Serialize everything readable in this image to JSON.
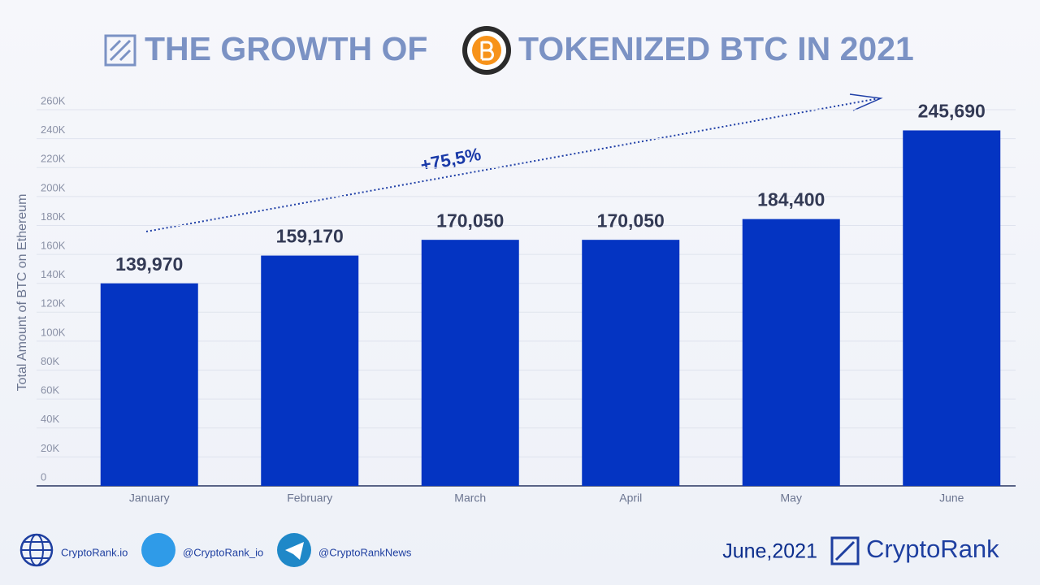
{
  "chart_data": {
    "type": "bar",
    "title": [
      "THE GROWTH OF",
      "TOKENIZED BTC IN 2021"
    ],
    "y_label": "Total Amount of BTC on Ethereum",
    "annotation": "+75,5%",
    "categories": [
      "January",
      "February",
      "March",
      "April",
      "May",
      "June"
    ],
    "values": [
      139970,
      159170,
      170050,
      170050,
      184400,
      245690
    ],
    "value_labels": [
      "139,970",
      "159,170",
      "170,050",
      "170,050",
      "184,400",
      "245,690"
    ],
    "color": "#0434c2",
    "ylim": [
      0,
      260000
    ],
    "yticks": [
      0,
      {
        "value": 20000,
        "label": "20K"
      },
      {
        "value": 40000,
        "label": "40K"
      },
      {
        "value": 60000,
        "label": "60K"
      },
      {
        "value": 80000,
        "label": "80K"
      },
      {
        "value": 100000,
        "label": "100K"
      },
      {
        "value": 120000,
        "label": "120K"
      },
      {
        "value": 140000,
        "label": "140K"
      },
      {
        "value": 160000,
        "label": "160K"
      },
      {
        "value": 180000,
        "label": "180K"
      },
      {
        "value": 200000,
        "label": "200K"
      },
      {
        "value": 220000,
        "label": "220K"
      },
      {
        "value": 240000,
        "label": "240K"
      },
      {
        "value": 260000,
        "label": "260K"
      }
    ],
    "grid": true
  },
  "footer": {
    "links": [
      "CryptoRank.io",
      "@CryptoRank_io",
      "@CryptoRankNews"
    ],
    "date": "June,2021",
    "brand": "CryptoRank"
  }
}
